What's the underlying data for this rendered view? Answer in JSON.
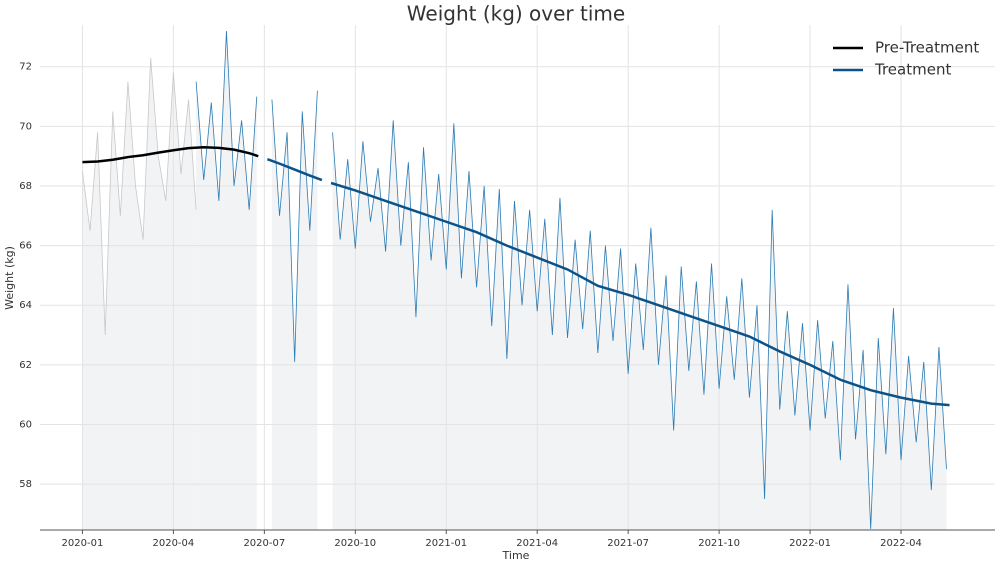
{
  "chart_data": {
    "type": "line",
    "title": "Weight (kg) over time",
    "xlabel": "Time",
    "ylabel": "Weight (kg)",
    "xlim": [
      -1.4,
      30.1
    ],
    "ylim": [
      56.46,
      73.4
    ],
    "xticks": [
      {
        "value": 0,
        "label": "2020-01"
      },
      {
        "value": 3,
        "label": "2020-04"
      },
      {
        "value": 6,
        "label": "2020-07"
      },
      {
        "value": 9,
        "label": "2020-10"
      },
      {
        "value": 12,
        "label": "2021-01"
      },
      {
        "value": 15,
        "label": "2021-04"
      },
      {
        "value": 18,
        "label": "2021-07"
      },
      {
        "value": 21,
        "label": "2021-10"
      },
      {
        "value": 24,
        "label": "2022-01"
      },
      {
        "value": 27,
        "label": "2022-04"
      }
    ],
    "yticks": [
      58,
      60,
      62,
      64,
      66,
      68,
      70,
      72
    ],
    "grid": true,
    "legend": "upper right",
    "fill": "#f1f3f5",
    "raw": [
      {
        "color": "#c8c8c8",
        "x": [
          0,
          0.25,
          0.5,
          0.75,
          1,
          1.25,
          1.5,
          1.75,
          2,
          2.25,
          2.5,
          2.75,
          3,
          3.25,
          3.5,
          3.75
        ],
        "values": [
          68.5,
          66.5,
          69.8,
          63.0,
          70.5,
          67.0,
          71.5,
          68.0,
          66.2,
          72.3,
          69.0,
          67.5,
          71.8,
          68.4,
          70.9,
          67.2
        ]
      },
      {
        "color": "#2b7bb4",
        "x": [
          3.75,
          4,
          4.25,
          4.5,
          4.75,
          5,
          5.25,
          5.5,
          5.75,
          6,
          6.25,
          6.5,
          6.75,
          7,
          7.25,
          7.5,
          7.75,
          8,
          8.25,
          8.5,
          8.75,
          9,
          9.25,
          9.5,
          9.75,
          10,
          10.25,
          10.5,
          10.75,
          11,
          11.25,
          11.5,
          11.75,
          12,
          12.25,
          12.5,
          12.75,
          13,
          13.25,
          13.5,
          13.75,
          14,
          14.25,
          14.5,
          14.75,
          15,
          15.25,
          15.5,
          15.75,
          16,
          16.25,
          16.5,
          16.75,
          17,
          17.25,
          17.5,
          17.75,
          18,
          18.25,
          18.5,
          18.75,
          19,
          19.25,
          19.5,
          19.75,
          20,
          20.25,
          20.5,
          20.75,
          21,
          21.25,
          21.5,
          21.75,
          22,
          22.25,
          22.5,
          22.75,
          23,
          23.25,
          23.5,
          23.75,
          24,
          24.25,
          24.5,
          24.75,
          25,
          25.25,
          25.5,
          25.75,
          26,
          26.25,
          26.5,
          26.75,
          27,
          27.25,
          27.5,
          27.75,
          28,
          28.25,
          28.5
        ],
        "values": [
          71.5,
          68.2,
          70.8,
          67.5,
          73.2,
          68.0,
          70.2,
          67.2,
          71.0,
          null,
          70.9,
          67.0,
          69.8,
          62.1,
          70.5,
          66.5,
          71.2,
          null,
          69.8,
          66.2,
          68.9,
          65.9,
          69.5,
          66.8,
          68.6,
          65.8,
          70.2,
          66.0,
          68.8,
          63.6,
          69.3,
          65.5,
          68.4,
          65.2,
          70.1,
          64.9,
          68.5,
          64.6,
          68.0,
          63.3,
          67.9,
          62.2,
          67.5,
          64.0,
          67.2,
          63.8,
          66.9,
          63.0,
          67.6,
          62.9,
          66.2,
          63.2,
          66.5,
          62.4,
          66.0,
          62.8,
          65.9,
          61.7,
          65.4,
          62.5,
          66.6,
          62.0,
          65.0,
          59.8,
          65.3,
          61.8,
          64.8,
          61.0,
          65.4,
          61.2,
          64.3,
          61.5,
          64.9,
          60.9,
          64.0,
          57.5,
          67.2,
          60.5,
          63.8,
          60.3,
          63.4,
          59.8,
          63.5,
          60.2,
          62.8,
          58.8,
          64.7,
          59.5,
          62.5,
          56.5,
          62.9,
          59.0,
          63.9,
          58.8,
          62.3,
          59.4,
          62.1,
          57.8,
          62.6,
          58.5
        ]
      }
    ],
    "series": [
      {
        "name": "Pre-Treatment",
        "color": "#000000",
        "x": [
          0,
          0.5,
          1,
          1.5,
          2,
          2.5,
          3,
          3.5,
          4,
          4.5,
          5,
          5.5,
          5.8
        ],
        "values": [
          68.8,
          68.82,
          68.88,
          68.97,
          69.03,
          69.12,
          69.2,
          69.27,
          69.3,
          69.28,
          69.22,
          69.1,
          69.0
        ]
      },
      {
        "name": "Treatment",
        "color": "#0d5287",
        "x": [
          6.1,
          6.5,
          7,
          7.5,
          7.9,
          8.05,
          8.2,
          9,
          10,
          11,
          12,
          13,
          14,
          15,
          16,
          17,
          18,
          19,
          20,
          21,
          22,
          23,
          24,
          25,
          26,
          27,
          28,
          28.6
        ],
        "values": [
          68.9,
          68.75,
          68.55,
          68.35,
          68.2,
          null,
          68.1,
          67.85,
          67.5,
          67.15,
          66.8,
          66.45,
          66.0,
          65.6,
          65.2,
          64.65,
          64.35,
          64.0,
          63.65,
          63.3,
          62.95,
          62.45,
          62.0,
          61.5,
          61.15,
          60.9,
          60.7,
          60.65
        ]
      }
    ]
  }
}
